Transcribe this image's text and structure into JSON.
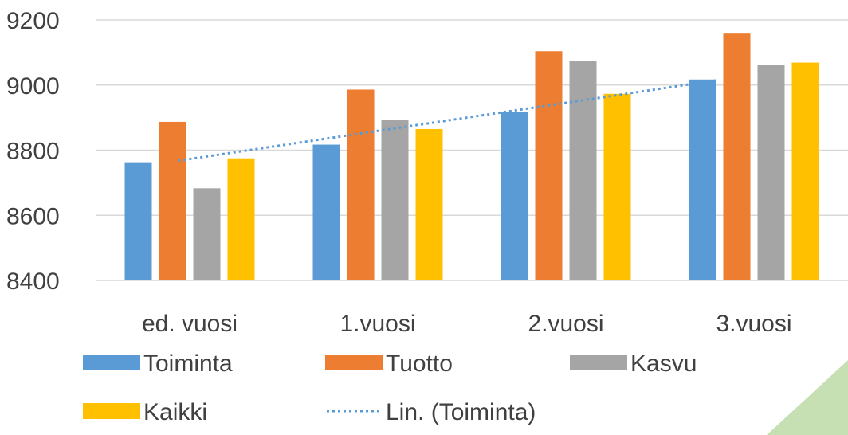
{
  "chart_data": {
    "type": "bar",
    "categories": [
      "ed. vuosi",
      "1.vuosi",
      "2.vuosi",
      "3.vuosi"
    ],
    "series": [
      {
        "name": "Toiminta",
        "color": "#5b9bd5",
        "values": [
          8763,
          8817,
          8918,
          9017
        ]
      },
      {
        "name": "Tuotto",
        "color": "#ed7d31",
        "values": [
          8887,
          8986,
          9104,
          9158
        ]
      },
      {
        "name": "Kasvu",
        "color": "#a5a5a5",
        "values": [
          8683,
          8892,
          9075,
          9062
        ]
      },
      {
        "name": "Kaikki",
        "color": "#ffc000",
        "values": [
          8775,
          8865,
          8973,
          9069
        ]
      }
    ],
    "trendline": {
      "name": "Lin. (Toiminta)",
      "of_series": "Toiminta",
      "type": "linear",
      "style": "dotted",
      "color": "#5b9bd5"
    },
    "yticks": [
      "8400",
      "8600",
      "8800",
      "9000",
      "9200"
    ],
    "ylim": [
      8400,
      9200
    ],
    "grid": true,
    "legend_position": "bottom"
  },
  "decor": {
    "corner_color": "#c6e0b4"
  }
}
